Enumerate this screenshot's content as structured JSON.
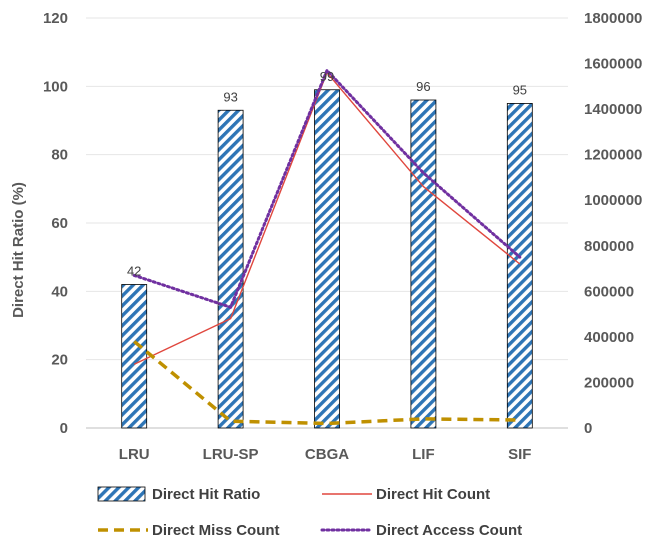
{
  "chart_data": {
    "type": "bar",
    "categories": [
      "LRU",
      "LRU-SP",
      "CBGA",
      "LIF",
      "SIF"
    ],
    "ylabel": "Direct Hit Ratio (%)",
    "ylim": [
      0,
      120
    ],
    "yticks": [
      0,
      20,
      40,
      60,
      80,
      100,
      120
    ],
    "y2lim": [
      0,
      1800000
    ],
    "y2ticks": [
      0,
      200000,
      400000,
      600000,
      800000,
      1000000,
      1200000,
      1400000,
      1600000,
      1800000
    ],
    "grid": true,
    "legend_position": "bottom",
    "series": [
      {
        "name": "Direct Hit Ratio",
        "type": "bar",
        "axis": "left",
        "values": [
          42,
          93,
          99,
          96,
          95
        ],
        "data_labels": [
          "42",
          "93",
          "99",
          "96",
          "95"
        ],
        "color": "#2E75B6",
        "pattern": "diagonal-hatch"
      },
      {
        "name": "Direct Hit Count",
        "type": "line",
        "axis": "right",
        "values": [
          280000,
          480000,
          1560000,
          1060000,
          720000
        ],
        "color": "#E0473E",
        "style": "solid"
      },
      {
        "name": "Direct Miss Count",
        "type": "line",
        "axis": "right",
        "values": [
          380000,
          30000,
          20000,
          40000,
          35000
        ],
        "color": "#BF9000",
        "style": "dashed"
      },
      {
        "name": "Direct Access Count",
        "type": "line",
        "axis": "right",
        "values": [
          670000,
          530000,
          1570000,
          1120000,
          750000
        ],
        "color": "#7030A0",
        "style": "dotted"
      }
    ]
  }
}
